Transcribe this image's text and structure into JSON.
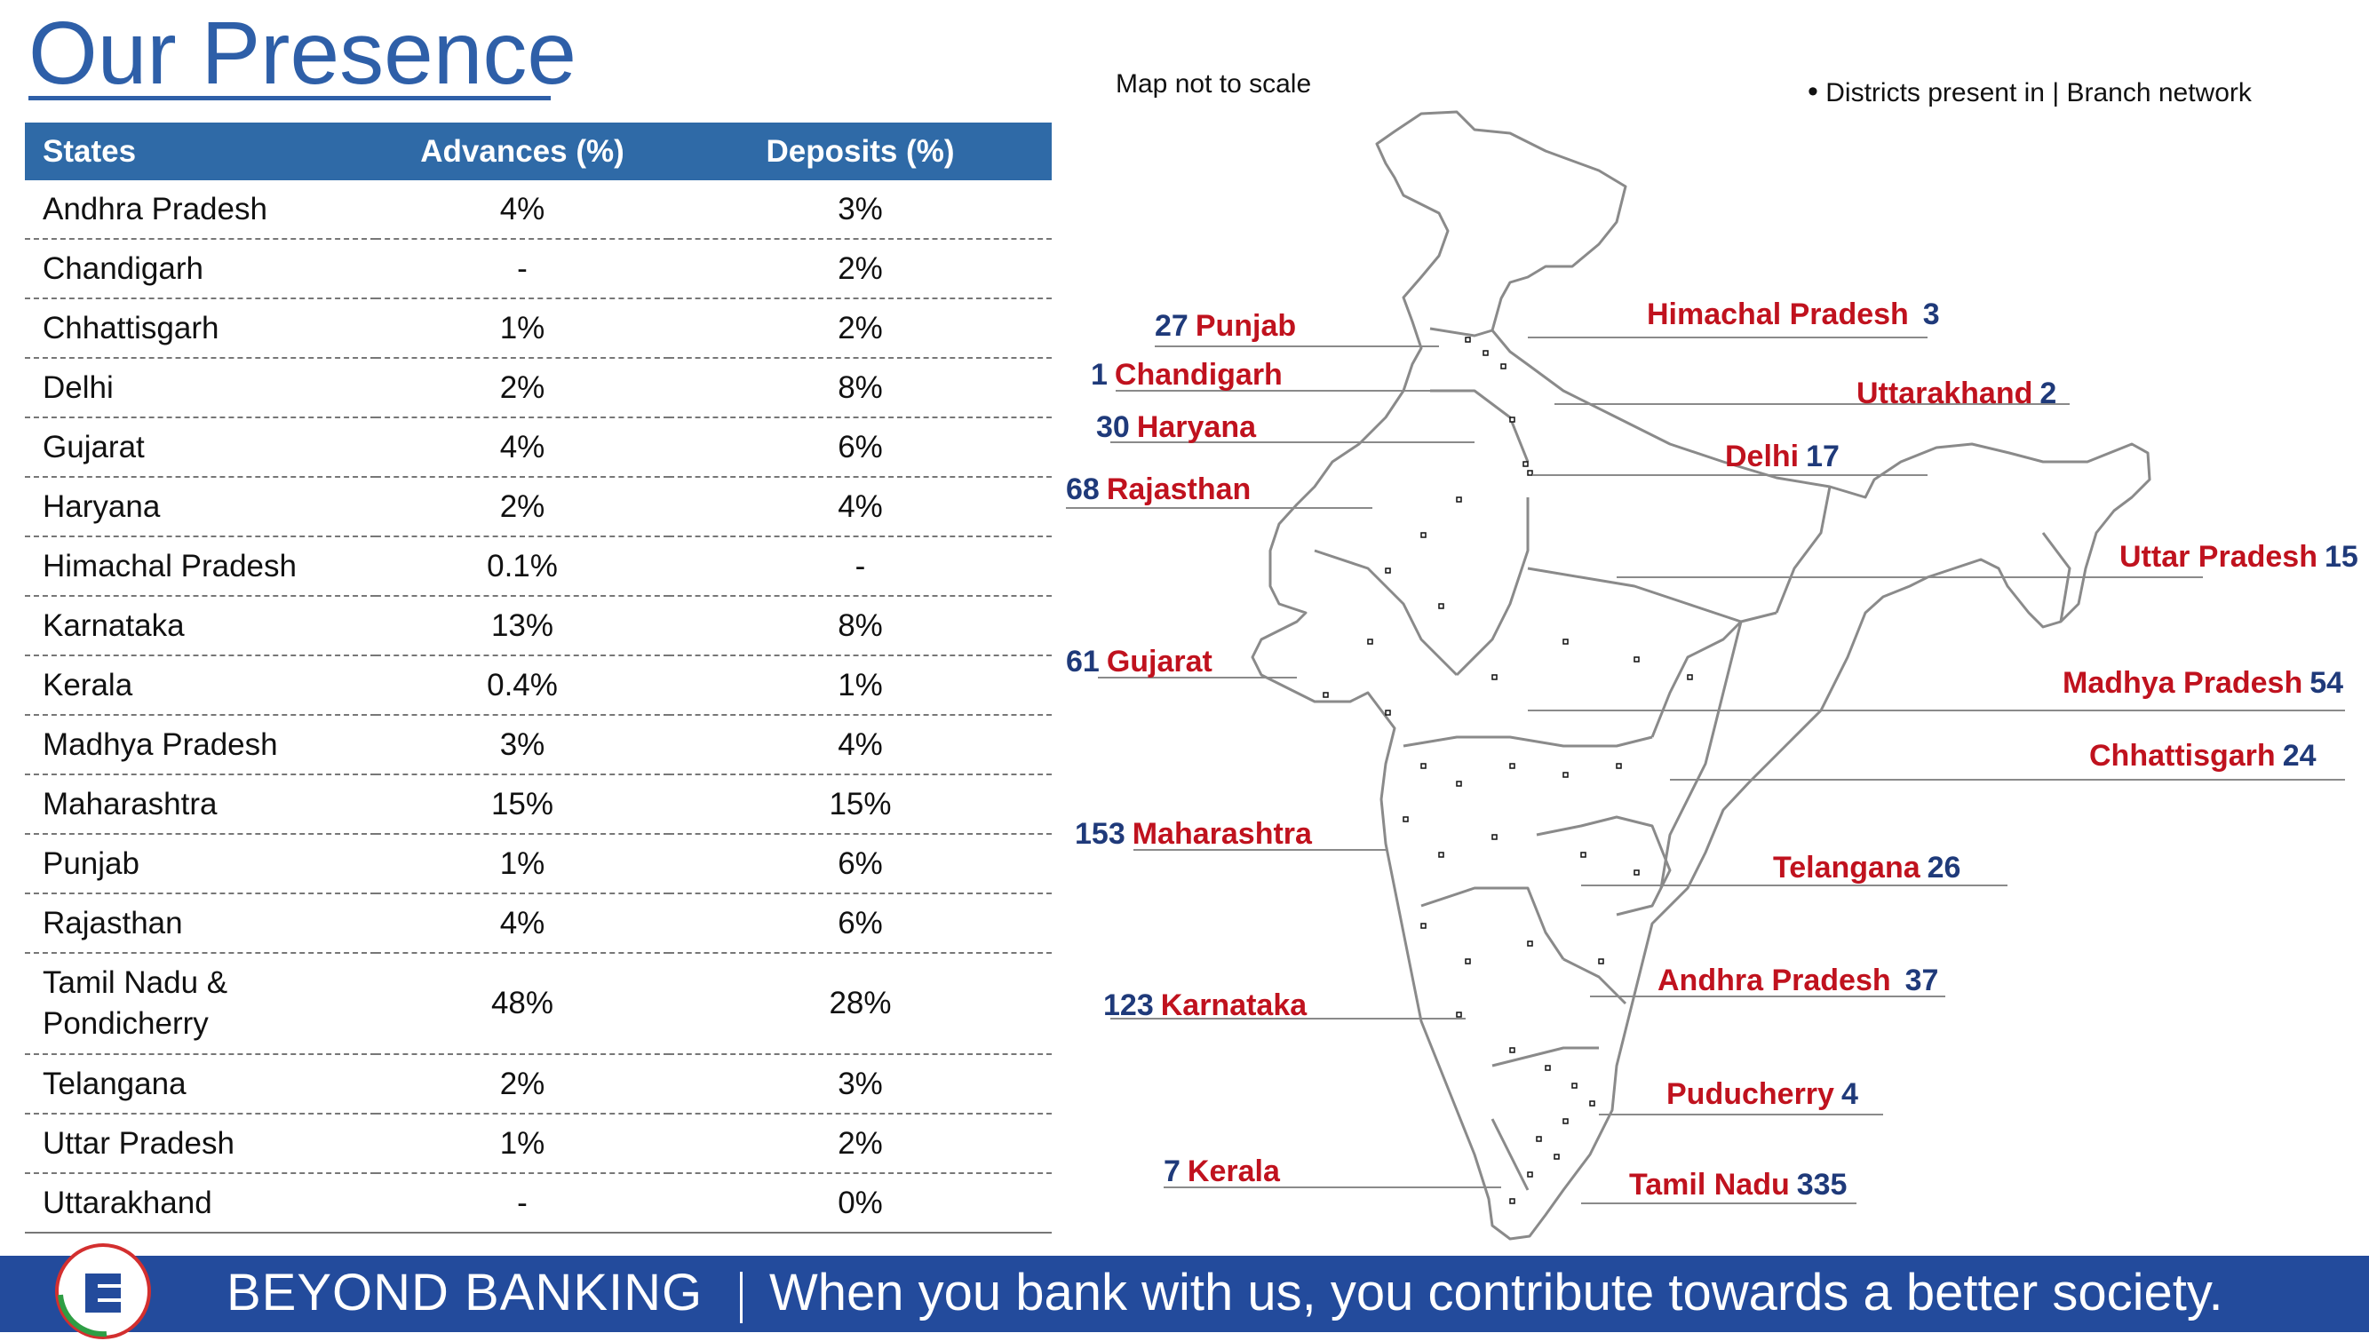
{
  "title": "Our Presence",
  "table": {
    "headers": [
      "States",
      "Advances (%)",
      "Deposits (%)"
    ],
    "rows": [
      [
        "Andhra Pradesh",
        "4%",
        "3%"
      ],
      [
        "Chandigarh",
        "-",
        "2%"
      ],
      [
        "Chhattisgarh",
        "1%",
        "2%"
      ],
      [
        "Delhi",
        "2%",
        "8%"
      ],
      [
        "Gujarat",
        "4%",
        "6%"
      ],
      [
        "Haryana",
        "2%",
        "4%"
      ],
      [
        "Himachal Pradesh",
        "0.1%",
        "-"
      ],
      [
        "Karnataka",
        "13%",
        "8%"
      ],
      [
        "Kerala",
        "0.4%",
        "1%"
      ],
      [
        "Madhya Pradesh",
        "3%",
        "4%"
      ],
      [
        "Maharashtra",
        "15%",
        "15%"
      ],
      [
        "Punjab",
        "1%",
        "6%"
      ],
      [
        "Rajasthan",
        "4%",
        "6%"
      ],
      [
        "Tamil Nadu & Pondicherry",
        "48%",
        "28%"
      ],
      [
        "Telangana",
        "2%",
        "3%"
      ],
      [
        "Uttar Pradesh",
        "1%",
        "2%"
      ],
      [
        "Uttarakhand",
        "-",
        "0%"
      ]
    ]
  },
  "map": {
    "note": "Map not to scale",
    "legend": "Districts present in | Branch network",
    "left_labels": [
      {
        "count": "27",
        "state": "Punjab"
      },
      {
        "count": "1",
        "state": "Chandigarh"
      },
      {
        "count": "30",
        "state": "Haryana"
      },
      {
        "count": "68",
        "state": "Rajasthan"
      },
      {
        "count": "61",
        "state": "Gujarat"
      },
      {
        "count": "153",
        "state": "Maharashtra"
      },
      {
        "count": "123",
        "state": "Karnataka"
      },
      {
        "count": "7",
        "state": "Kerala"
      }
    ],
    "right_labels": [
      {
        "state": "Himachal Pradesh",
        "count": "3"
      },
      {
        "state": "Uttarakhand",
        "count": "2"
      },
      {
        "state": "Delhi",
        "count": "17"
      },
      {
        "state": "Uttar Pradesh",
        "count": "15"
      },
      {
        "state": "Madhya Pradesh",
        "count": "54"
      },
      {
        "state": "Chhattisgarh",
        "count": "24"
      },
      {
        "state": "Telangana",
        "count": "26"
      },
      {
        "state": "Andhra Pradesh",
        "count": "37"
      },
      {
        "state": "Puducherry",
        "count": "4"
      },
      {
        "state": "Tamil Nadu",
        "count": "335"
      }
    ],
    "colors": {
      "state": "#c0121e",
      "count": "#1f3a7a",
      "outline": "#8a8a8a"
    }
  },
  "footer": {
    "brand": "BEYOND BANKING",
    "tagline": "When you bank with us, you contribute towards a better society."
  },
  "logo_icon": "bank-logo-icon"
}
